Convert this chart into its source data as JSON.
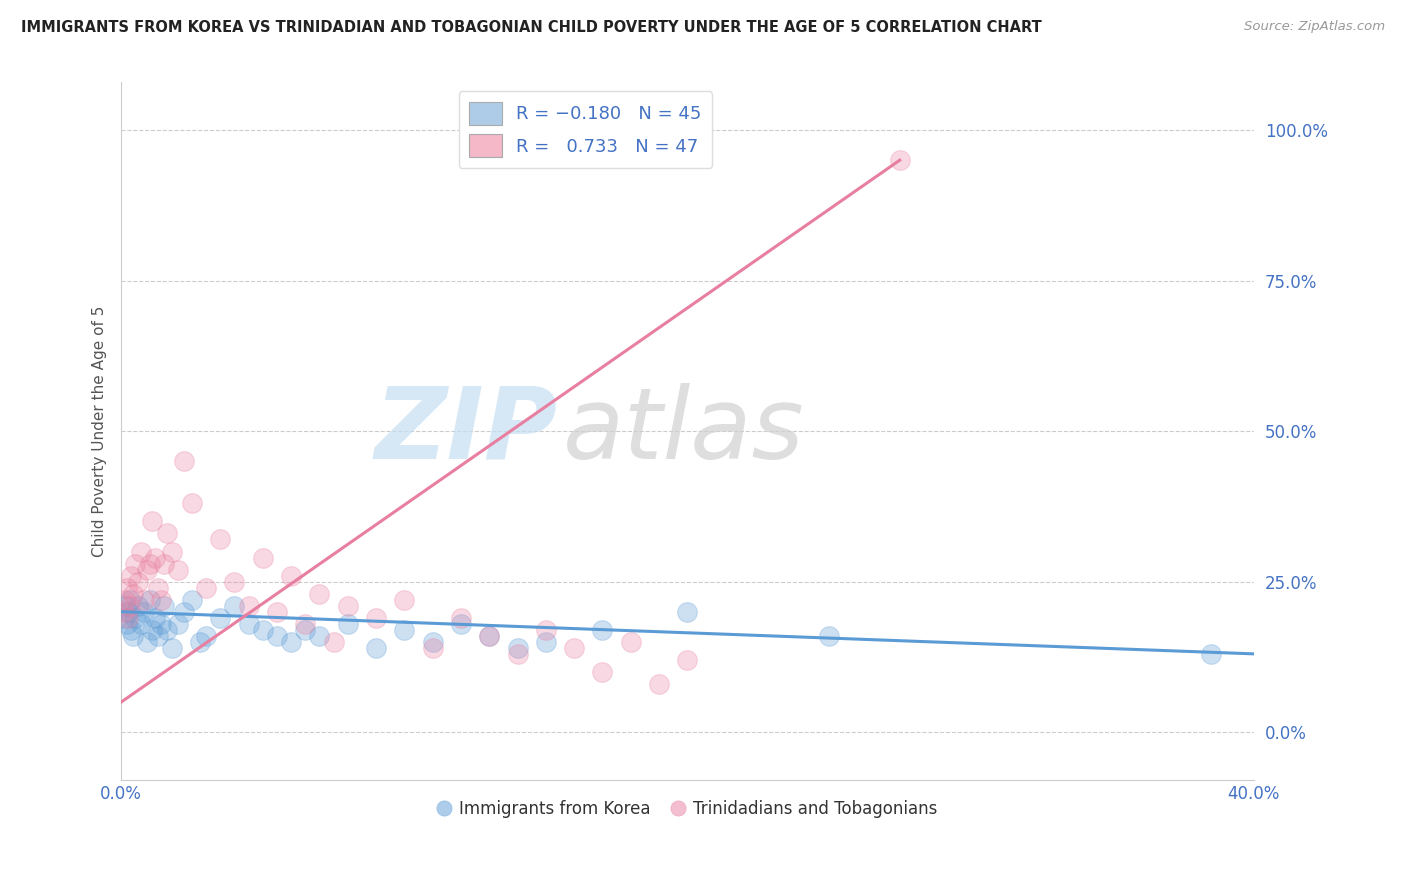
{
  "title": "IMMIGRANTS FROM KOREA VS TRINIDADIAN AND TOBAGONIAN CHILD POVERTY UNDER THE AGE OF 5 CORRELATION CHART",
  "source": "Source: ZipAtlas.com",
  "ylabel_label": "Child Poverty Under the Age of 5",
  "xlim": [
    0,
    40
  ],
  "ylim": [
    -8,
    108
  ],
  "legend_entries": [
    {
      "label_r": "R = ",
      "label_rv": "-0.180",
      "label_n": "  N = ",
      "label_nv": "45",
      "color": "#aecce8"
    },
    {
      "label_r": "R =  ",
      "label_rv": "0.733",
      "label_n": "  N = ",
      "label_nv": "47",
      "color": "#f4b8c8"
    }
  ],
  "legend_bottom": [
    "Immigrants from Korea",
    "Trinidadians and Tobagonians"
  ],
  "blue_color": "#5b9bd5",
  "pink_color": "#e87fa0",
  "blue_scatter_x": [
    0.1,
    0.15,
    0.2,
    0.25,
    0.3,
    0.35,
    0.4,
    0.5,
    0.6,
    0.7,
    0.8,
    0.9,
    1.0,
    1.1,
    1.2,
    1.3,
    1.4,
    1.5,
    1.6,
    1.8,
    2.0,
    2.2,
    2.5,
    2.8,
    3.0,
    3.5,
    4.0,
    4.5,
    5.0,
    5.5,
    6.0,
    6.5,
    7.0,
    8.0,
    9.0,
    10.0,
    11.0,
    12.0,
    13.0,
    14.0,
    15.0,
    17.0,
    20.0,
    25.0,
    38.5
  ],
  "blue_scatter_y": [
    19,
    21,
    18,
    20,
    22,
    17,
    16,
    19,
    21,
    18,
    20,
    15,
    22,
    17,
    19,
    16,
    18,
    21,
    17,
    14,
    18,
    20,
    22,
    15,
    16,
    19,
    21,
    18,
    17,
    16,
    15,
    17,
    16,
    18,
    14,
    17,
    15,
    18,
    16,
    14,
    15,
    17,
    20,
    16,
    13
  ],
  "pink_scatter_x": [
    0.1,
    0.15,
    0.2,
    0.25,
    0.3,
    0.35,
    0.4,
    0.5,
    0.6,
    0.7,
    0.8,
    0.9,
    1.0,
    1.1,
    1.2,
    1.3,
    1.4,
    1.5,
    1.6,
    1.8,
    2.0,
    2.2,
    2.5,
    3.0,
    3.5,
    4.0,
    4.5,
    5.0,
    5.5,
    6.0,
    6.5,
    7.0,
    7.5,
    8.0,
    9.0,
    10.0,
    11.0,
    12.0,
    13.0,
    14.0,
    15.0,
    16.0,
    17.0,
    18.0,
    19.0,
    20.0,
    27.5
  ],
  "pink_scatter_y": [
    20,
    22,
    24,
    19,
    21,
    26,
    23,
    28,
    25,
    30,
    22,
    27,
    28,
    35,
    29,
    24,
    22,
    28,
    33,
    30,
    27,
    45,
    38,
    24,
    32,
    25,
    21,
    29,
    20,
    26,
    18,
    23,
    15,
    21,
    19,
    22,
    14,
    19,
    16,
    13,
    17,
    14,
    10,
    15,
    8,
    12,
    95
  ],
  "blue_line_x": [
    0,
    40
  ],
  "blue_line_y": [
    20,
    13
  ],
  "pink_line_x": [
    0,
    27.5
  ],
  "pink_line_y": [
    5,
    95
  ],
  "ytick_vals": [
    0,
    25,
    50,
    75,
    100
  ],
  "ytick_labels": [
    "0.0%",
    "25.0%",
    "50.0%",
    "75.0%",
    "100.0%"
  ],
  "background_color": "#ffffff",
  "grid_color": "#cccccc",
  "title_color": "#222222",
  "axis_label_color": "#555555",
  "tick_color": "#4472c4"
}
